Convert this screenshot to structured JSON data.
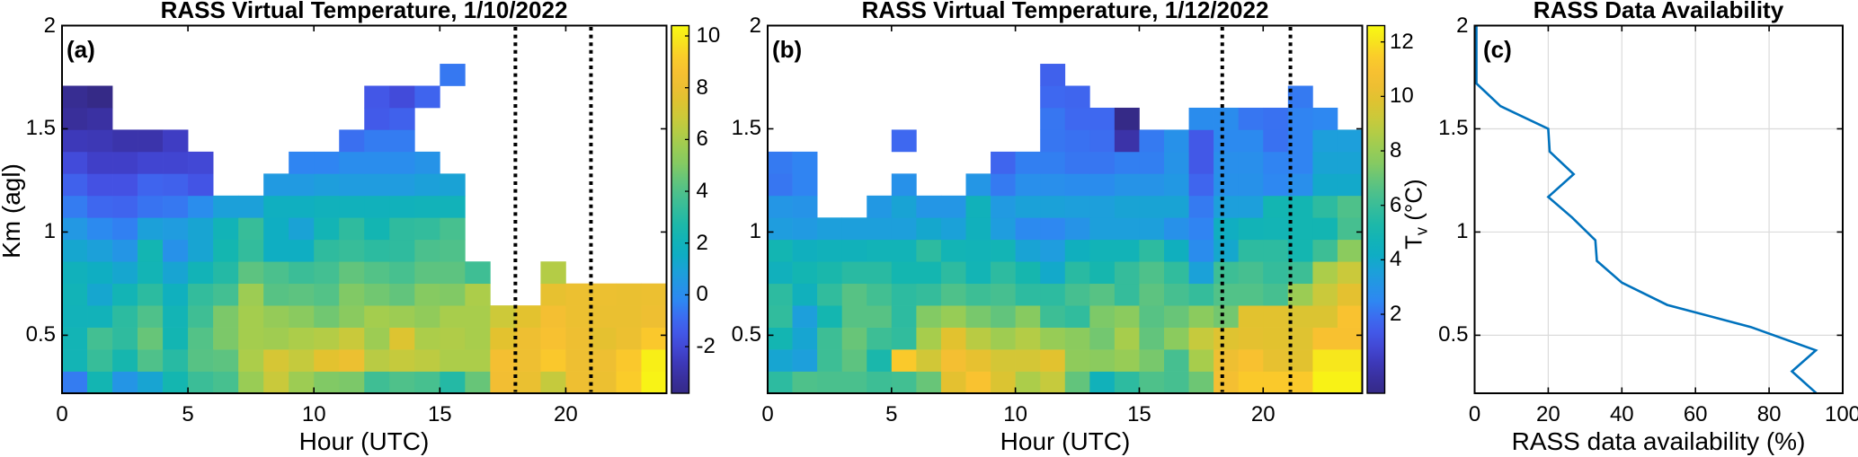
{
  "figure_type": "matlab-style scientific figure, three panels",
  "background_color": "#ffffff",
  "accent_line_color": "#0072bd",
  "event_line_color": "#000000",
  "labels": {
    "panel_a_letter": "(a)",
    "panel_b_letter": "(b)",
    "panel_c_letter": "(c)",
    "colorbar_b_label": {
      "main": "T",
      "sub": "v",
      "unit": " (°C)"
    }
  },
  "chart_data": [
    {
      "id": "a",
      "type": "heatmap",
      "title": "RASS Virtual Temperature, 1/10/2022",
      "xlabel": "Hour (UTC)",
      "ylabel": "Km (agl)",
      "xlim": [
        0,
        24
      ],
      "ylim": [
        0.219,
        2.0
      ],
      "xticks": [
        0,
        5,
        10,
        15,
        20
      ],
      "yticks": [
        0.5,
        1,
        1.5,
        2
      ],
      "grid": false,
      "colormap": "parula",
      "clim": [
        -3.8,
        10.4
      ],
      "colorbar_ticks": [
        -2,
        0,
        2,
        4,
        6,
        8,
        10
      ],
      "event_lines_hour_utc": [
        18.0,
        21.0
      ],
      "hours_utc": [
        0,
        1,
        2,
        3,
        4,
        5,
        6,
        7,
        8,
        9,
        10,
        11,
        12,
        13,
        14,
        15,
        16,
        17,
        18,
        19,
        20,
        21,
        22,
        23
      ],
      "row_center_heights_km": [
        0.272,
        0.379,
        0.485,
        0.591,
        0.698,
        0.804,
        0.911,
        1.017,
        1.123,
        1.23,
        1.336,
        1.442,
        1.549,
        1.655,
        1.762
      ],
      "values_tv_degc_rows_bottom_to_top": [
        [
          -0.5,
          2.3,
          0.4,
          1.1,
          2.4,
          3.5,
          3.8,
          5.6,
          6.8,
          5.7,
          5.0,
          4.9,
          3.6,
          4.0,
          3.8,
          2.9,
          4.5,
          8.3,
          7.9,
          6.7,
          8.1,
          8.0,
          9.2,
          10.2
        ],
        [
          2.2,
          3.4,
          2.5,
          4.0,
          3.0,
          4.2,
          4.3,
          6.1,
          7.2,
          6.7,
          7.6,
          8.0,
          6.4,
          6.7,
          6.5,
          6.1,
          6.1,
          8.4,
          8.1,
          9.1,
          8.1,
          8.1,
          9.1,
          10.1
        ],
        [
          2.2,
          3.7,
          3.2,
          4.5,
          2.3,
          4.1,
          4.9,
          5.9,
          5.8,
          6.1,
          6.3,
          6.8,
          5.7,
          7.4,
          6.1,
          6.2,
          6.0,
          7.6,
          8.1,
          8.7,
          8.1,
          7.7,
          8.0,
          9.1
        ],
        [
          2.0,
          2.0,
          3.1,
          4.0,
          2.2,
          3.6,
          4.9,
          5.9,
          5.5,
          5.2,
          4.7,
          5.2,
          5.9,
          5.7,
          5.4,
          6.0,
          6.0,
          6.9,
          7.6,
          8.4,
          8.0,
          7.9,
          7.9,
          8.1
        ],
        [
          2.1,
          1.2,
          2.2,
          3.1,
          1.8,
          3.3,
          3.7,
          5.7,
          4.2,
          4.3,
          4.1,
          5.0,
          4.7,
          4.4,
          5.1,
          5.0,
          6.1,
          null,
          null,
          7.8,
          8.0,
          8.0,
          7.9,
          8.0
        ],
        [
          1.9,
          1.6,
          1.2,
          2.2,
          1.1,
          2.1,
          2.9,
          4.3,
          3.9,
          3.5,
          3.7,
          4.4,
          4.1,
          3.8,
          4.3,
          4.3,
          3.6,
          null,
          null,
          6.3,
          null,
          null,
          null,
          null
        ],
        [
          1.2,
          0.9,
          0.4,
          2.3,
          0.2,
          1.1,
          2.4,
          3.3,
          1.6,
          1.6,
          3.2,
          3.4,
          3.1,
          3.2,
          3.9,
          4.0,
          null,
          null,
          null,
          null,
          null,
          null,
          null,
          null
        ],
        [
          0.5,
          -0.1,
          -0.4,
          0.9,
          0.7,
          1.1,
          2.1,
          3.4,
          1.6,
          1.0,
          2.2,
          3.2,
          2.3,
          3.2,
          3.3,
          3.8,
          null,
          null,
          null,
          null,
          null,
          null,
          null,
          null
        ],
        [
          -0.5,
          -1.0,
          -1.1,
          -0.7,
          -0.6,
          0.0,
          0.9,
          0.9,
          1.7,
          1.7,
          1.9,
          1.9,
          1.9,
          1.9,
          2.0,
          2.0,
          null,
          null,
          null,
          null,
          null,
          null,
          null,
          null
        ],
        [
          -1.2,
          -1.7,
          -1.7,
          -1.1,
          -1.2,
          -1.6,
          null,
          null,
          0.6,
          0.6,
          0.8,
          0.7,
          0.7,
          0.7,
          0.9,
          1.0,
          null,
          null,
          null,
          null,
          null,
          null,
          null,
          null
        ],
        [
          -1.9,
          -2.3,
          -2.3,
          -2.1,
          -2.1,
          -2.0,
          null,
          null,
          null,
          -0.3,
          -0.3,
          -0.0,
          0.0,
          0.0,
          0.3,
          null,
          null,
          null,
          null,
          null,
          null,
          null,
          null,
          null
        ],
        [
          -2.6,
          -2.7,
          -2.9,
          -2.9,
          -2.4,
          null,
          null,
          null,
          null,
          null,
          null,
          -0.8,
          -0.5,
          -0.5,
          null,
          null,
          null,
          null,
          null,
          null,
          null,
          null,
          null,
          null
        ],
        [
          -3.3,
          -3.1,
          null,
          null,
          null,
          null,
          null,
          null,
          null,
          null,
          null,
          null,
          -1.4,
          -1.2,
          null,
          null,
          null,
          null,
          null,
          null,
          null,
          null,
          null,
          null
        ],
        [
          -3.5,
          -3.8,
          null,
          null,
          null,
          null,
          null,
          null,
          null,
          null,
          null,
          null,
          -1.5,
          -1.9,
          -1.1,
          null,
          null,
          null,
          null,
          null,
          null,
          null,
          null,
          null
        ],
        [
          null,
          null,
          null,
          null,
          null,
          null,
          null,
          null,
          null,
          null,
          null,
          null,
          null,
          null,
          null,
          -0.6,
          null,
          null,
          null,
          null,
          null,
          null,
          null,
          null
        ]
      ]
    },
    {
      "id": "b",
      "type": "heatmap",
      "title": "RASS Virtual Temperature, 1/12/2022",
      "xlabel": "Hour (UTC)",
      "ylabel": "",
      "xlim": [
        0,
        24
      ],
      "ylim": [
        0.219,
        2.0
      ],
      "xticks": [
        0,
        5,
        10,
        15,
        20
      ],
      "yticks": [
        0.5,
        1,
        1.5,
        2
      ],
      "grid": false,
      "colormap": "parula",
      "clim": [
        -0.9,
        12.6
      ],
      "colorbar_ticks": [
        2,
        4,
        6,
        8,
        10,
        12
      ],
      "colorbar_label": "Tv (°C)",
      "event_lines_hour_utc": [
        18.35,
        21.1
      ],
      "hours_utc": [
        0,
        1,
        2,
        3,
        4,
        5,
        6,
        7,
        8,
        9,
        10,
        11,
        12,
        13,
        14,
        15,
        16,
        17,
        18,
        19,
        20,
        21,
        22,
        23
      ],
      "row_center_heights_km": [
        0.272,
        0.379,
        0.485,
        0.591,
        0.698,
        0.804,
        0.911,
        1.017,
        1.123,
        1.23,
        1.336,
        1.442,
        1.549,
        1.655,
        1.762
      ],
      "values_tv_degc_rows_bottom_to_top": [
        [
          5.7,
          6.5,
          6.4,
          6.4,
          6.1,
          6.2,
          7.0,
          10.0,
          11.1,
          9.7,
          8.5,
          9.1,
          6.9,
          4.6,
          5.7,
          6.5,
          6.3,
          7.1,
          10.7,
          11.4,
          11.4,
          11.4,
          12.4,
          12.4
        ],
        [
          3.8,
          3.5,
          6.1,
          6.8,
          5.2,
          11.4,
          9.4,
          10.7,
          10.1,
          9.5,
          9.5,
          9.9,
          7.8,
          7.7,
          8.0,
          7.3,
          6.3,
          8.4,
          10.4,
          11.0,
          10.1,
          9.9,
          12.1,
          12.1
        ],
        [
          4.9,
          3.8,
          6.1,
          7.0,
          6.1,
          5.8,
          8.4,
          9.9,
          8.8,
          8.2,
          8.7,
          8.0,
          7.7,
          7.2,
          8.4,
          6.9,
          7.7,
          9.1,
          9.8,
          10.0,
          9.9,
          9.8,
          11.0,
          11.0
        ],
        [
          5.8,
          3.5,
          5.0,
          6.7,
          6.7,
          5.7,
          7.5,
          8.0,
          7.3,
          6.9,
          7.6,
          6.1,
          5.8,
          7.4,
          7.7,
          6.7,
          7.0,
          7.7,
          7.2,
          9.9,
          9.9,
          9.7,
          9.7,
          11.1
        ],
        [
          5.7,
          4.5,
          5.8,
          6.7,
          6.2,
          5.7,
          5.9,
          6.5,
          6.1,
          6.3,
          5.7,
          5.7,
          6.3,
          6.7,
          5.9,
          6.8,
          6.3,
          5.9,
          6.6,
          6.6,
          6.3,
          8.1,
          9.2,
          10.0
        ],
        [
          4.5,
          4.9,
          5.2,
          5.6,
          5.6,
          5.0,
          5.0,
          5.7,
          4.8,
          5.7,
          5.1,
          4.0,
          5.6,
          5.1,
          5.9,
          6.5,
          5.8,
          3.6,
          6.1,
          6.3,
          5.9,
          6.1,
          8.5,
          9.2
        ],
        [
          4.9,
          4.4,
          4.6,
          4.6,
          4.7,
          4.7,
          5.7,
          4.8,
          4.7,
          4.8,
          3.7,
          3.4,
          4.4,
          4.7,
          4.7,
          5.7,
          4.4,
          2.7,
          3.9,
          5.7,
          5.7,
          5.0,
          6.1,
          7.7
        ],
        [
          3.4,
          3.3,
          3.5,
          3.5,
          3.5,
          3.5,
          3.9,
          3.6,
          4.5,
          3.4,
          2.6,
          2.5,
          3.0,
          3.5,
          3.5,
          3.5,
          2.9,
          2.4,
          4.3,
          4.7,
          4.8,
          4.9,
          4.9,
          6.3
        ],
        [
          3.1,
          3.0,
          null,
          null,
          3.2,
          3.7,
          3.1,
          3.1,
          4.6,
          3.3,
          3.6,
          3.6,
          3.5,
          3.5,
          3.7,
          3.7,
          3.7,
          2.2,
          3.5,
          3.5,
          4.9,
          4.9,
          5.7,
          6.5
        ],
        [
          2.1,
          2.4,
          null,
          null,
          null,
          2.9,
          null,
          null,
          3.1,
          2.2,
          2.8,
          2.8,
          2.7,
          2.7,
          3.0,
          3.0,
          3.2,
          1.7,
          2.9,
          2.9,
          2.5,
          2.8,
          4.0,
          4.0
        ],
        [
          2.2,
          2.4,
          null,
          null,
          null,
          null,
          null,
          null,
          null,
          1.7,
          2.3,
          2.3,
          2.1,
          2.1,
          2.3,
          2.3,
          3.0,
          1.3,
          2.8,
          2.8,
          2.4,
          2.4,
          3.7,
          3.7
        ],
        [
          null,
          null,
          null,
          null,
          null,
          1.8,
          null,
          null,
          null,
          null,
          null,
          2.1,
          2.0,
          1.9,
          -0.1,
          2.2,
          2.9,
          1.3,
          2.6,
          2.6,
          2.0,
          2.4,
          3.5,
          3.5
        ],
        [
          null,
          null,
          null,
          null,
          null,
          null,
          null,
          null,
          null,
          null,
          null,
          2.1,
          1.8,
          1.8,
          -0.9,
          null,
          null,
          2.7,
          2.7,
          2.1,
          2.0,
          2.4,
          2.5,
          null
        ],
        [
          null,
          null,
          null,
          null,
          null,
          null,
          null,
          null,
          null,
          null,
          null,
          1.8,
          1.7,
          null,
          null,
          null,
          null,
          null,
          null,
          null,
          null,
          2.2,
          null,
          null
        ],
        [
          null,
          null,
          null,
          null,
          null,
          null,
          null,
          null,
          null,
          null,
          null,
          1.6,
          null,
          null,
          null,
          null,
          null,
          null,
          null,
          null,
          null,
          null,
          null,
          null
        ]
      ]
    },
    {
      "id": "c",
      "type": "line",
      "title": "RASS Data Availability",
      "xlabel": "RASS data availability (%)",
      "ylabel": "",
      "xlim": [
        0,
        100
      ],
      "ylim": [
        0.219,
        2.0
      ],
      "xticks": [
        0,
        20,
        40,
        60,
        80,
        100
      ],
      "yticks": [
        0.5,
        1,
        1.5,
        2
      ],
      "grid": true,
      "line_color": "#0072bd",
      "series_name": "RASS data availability",
      "availability_pct": [
        0.5,
        0.5,
        7.0,
        20.0,
        20.4,
        26.9,
        20.0,
        26.5,
        32.8,
        33.2,
        40.0,
        52.3,
        75.0,
        92.7,
        86.2,
        92.8
      ],
      "height_km": [
        2.0,
        1.72,
        1.61,
        1.5,
        1.39,
        1.28,
        1.17,
        1.07,
        0.96,
        0.86,
        0.755,
        0.647,
        0.54,
        0.427,
        0.325,
        0.22
      ]
    }
  ]
}
